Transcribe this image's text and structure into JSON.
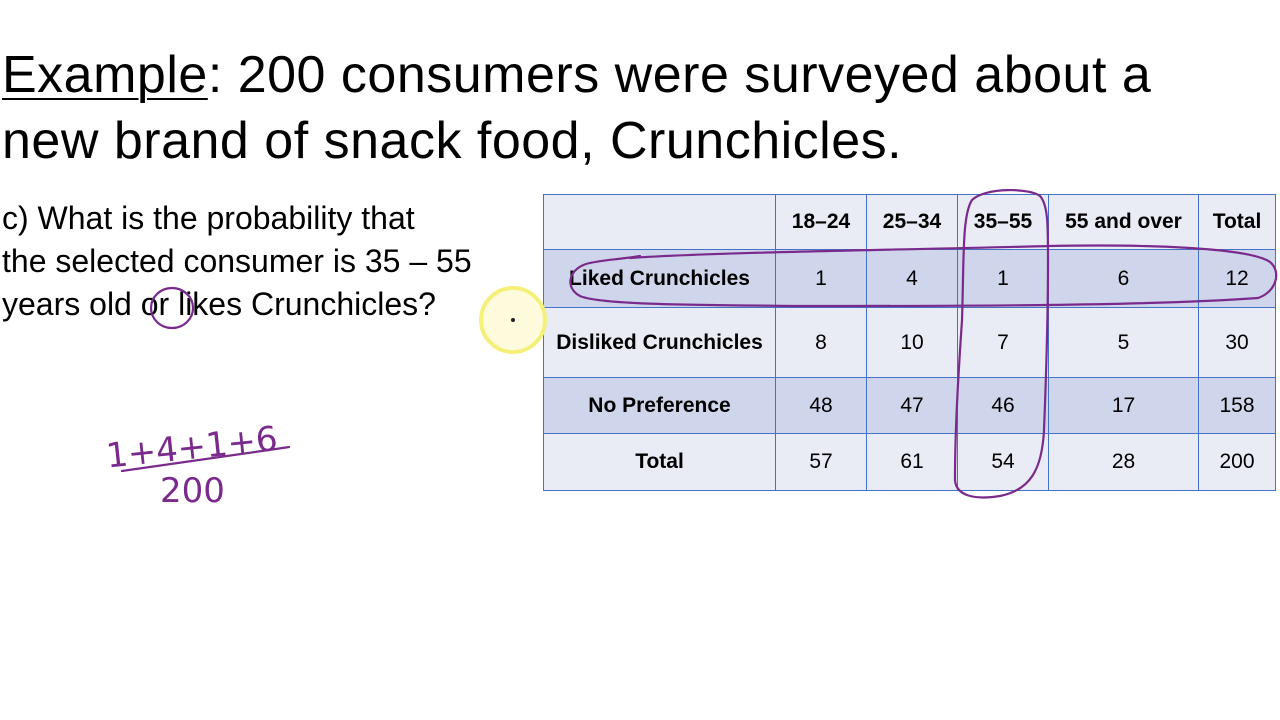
{
  "title": {
    "keyword": "Example",
    "rest_line1": ": 200 consumers were surveyed about a",
    "line2": "new brand of snack food, Crunchicles."
  },
  "question": {
    "part": "c)",
    "text_line1": " What is the probability that",
    "text_line2": "the selected consumer is 35 – 55",
    "text_line3_pre": "years old ",
    "text_line3_or": "or",
    "text_line3_post": " likes Crunchicles?"
  },
  "table": {
    "headers": [
      "",
      "18–24",
      "25–34",
      "35–55",
      "55 and over",
      "Total"
    ],
    "rows": [
      {
        "label": "Liked Crunchicles",
        "values": [
          "1",
          "4",
          "1",
          "6",
          "12"
        ]
      },
      {
        "label": "Disliked Crunchicles",
        "values": [
          "8",
          "10",
          "7",
          "5",
          "30"
        ]
      },
      {
        "label": "No Preference",
        "values": [
          "48",
          "47",
          "46",
          "17",
          "158"
        ]
      },
      {
        "label": "Total",
        "values": [
          "57",
          "61",
          "54",
          "28",
          "200"
        ]
      }
    ]
  },
  "handwriting": {
    "numerator": "1+4+1+6",
    "denominator": "200",
    "ink_color": "#7a2a8c"
  },
  "colors": {
    "table_border": "#4472c4",
    "band_light": "#e9ebf5",
    "band_dark": "#cfd5ea",
    "cursor_highlight": "#f5f07a"
  }
}
